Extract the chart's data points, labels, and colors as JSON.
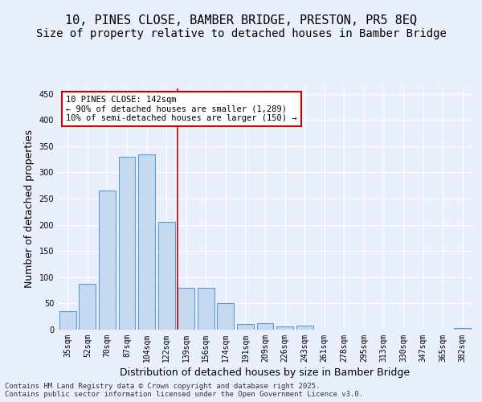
{
  "title_line1": "10, PINES CLOSE, BAMBER BRIDGE, PRESTON, PR5 8EQ",
  "title_line2": "Size of property relative to detached houses in Bamber Bridge",
  "xlabel": "Distribution of detached houses by size in Bamber Bridge",
  "ylabel": "Number of detached properties",
  "categories": [
    "35sqm",
    "52sqm",
    "70sqm",
    "87sqm",
    "104sqm",
    "122sqm",
    "139sqm",
    "156sqm",
    "174sqm",
    "191sqm",
    "209sqm",
    "226sqm",
    "243sqm",
    "261sqm",
    "278sqm",
    "295sqm",
    "313sqm",
    "330sqm",
    "347sqm",
    "365sqm",
    "382sqm"
  ],
  "values": [
    35,
    88,
    265,
    330,
    335,
    205,
    80,
    80,
    50,
    10,
    13,
    6,
    7,
    0,
    0,
    0,
    0,
    0,
    0,
    0,
    3
  ],
  "bar_color": "#c5d9f0",
  "bar_edge_color": "#5b9bd5",
  "vline_x": 6.0,
  "vline_color": "#cc0000",
  "annotation_text": "10 PINES CLOSE: 142sqm\n← 90% of detached houses are smaller (1,289)\n10% of semi-detached houses are larger (150) →",
  "annotation_box_color": "#ffffff",
  "annotation_box_edge": "#cc0000",
  "ylim": [
    0,
    460
  ],
  "yticks": [
    0,
    50,
    100,
    150,
    200,
    250,
    300,
    350,
    400,
    450
  ],
  "background_color": "#eaf0fb",
  "footer_text": "Contains HM Land Registry data © Crown copyright and database right 2025.\nContains public sector information licensed under the Open Government Licence v3.0.",
  "title_fontsize": 11,
  "subtitle_fontsize": 10,
  "tick_fontsize": 7,
  "ylabel_fontsize": 9,
  "xlabel_fontsize": 9
}
